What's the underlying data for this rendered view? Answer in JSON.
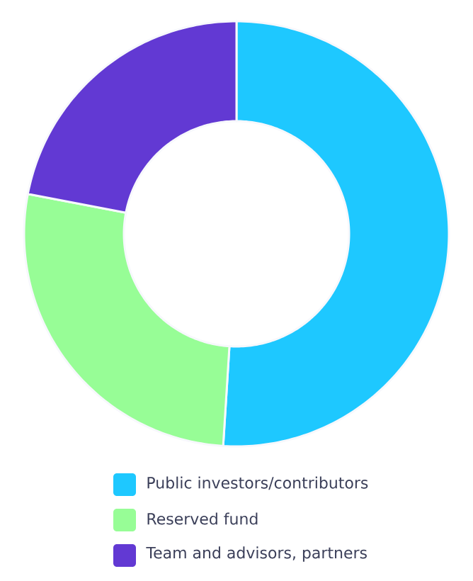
{
  "chart_data": {
    "type": "donut",
    "categories": [
      "Public investors/contributors",
      "Reserved fund",
      "Team and advisors, partners"
    ],
    "values": [
      51,
      27,
      22
    ],
    "colors": [
      "#1ec8ff",
      "#97fd96",
      "#6239d3"
    ],
    "legend": "bottom"
  }
}
